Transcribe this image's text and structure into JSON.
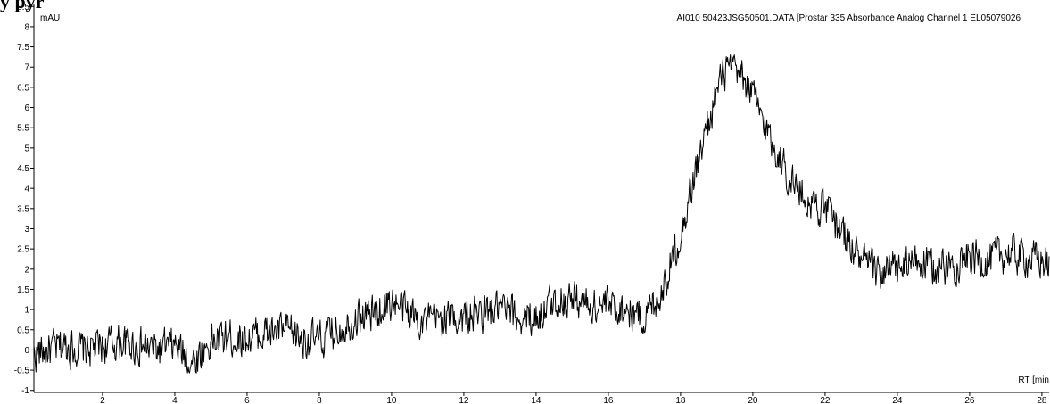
{
  "heading_fragment": "y                  pyr",
  "chart_data": {
    "type": "line",
    "title": "AI010 50423JSG50501.DATA [Prostar 335 Absorbance Analog Channel 1 EL05079026",
    "xlabel": "RT [min",
    "ylabel": "mAU",
    "xlim": [
      0.1,
      28.2
    ],
    "ylim": [
      -1.05,
      8.55
    ],
    "x_ticks": [
      2,
      4,
      6,
      8,
      10,
      12,
      14,
      16,
      18,
      20,
      22,
      24,
      26,
      28
    ],
    "y_ticks": [
      -1,
      -0.5,
      0,
      0.5,
      1,
      1.5,
      2,
      2.5,
      3,
      3.5,
      4,
      4.5,
      5,
      5.5,
      6,
      6.5,
      7,
      7.5,
      8,
      8.5
    ],
    "grid": false,
    "series": [
      {
        "x": [
          0.1,
          0.5,
          1,
          1.5,
          2,
          2.5,
          3,
          3.5,
          4,
          4.5,
          5,
          5.5,
          6,
          6.5,
          7,
          7.5,
          8,
          8.5,
          9,
          9.5,
          10,
          10.5,
          11,
          11.5,
          12,
          12.5,
          13,
          13.5,
          14,
          14.5,
          15,
          15.5,
          16,
          16.5,
          17,
          17.5,
          18,
          18.5,
          19,
          19.25,
          19.5,
          19.75,
          20,
          20.5,
          21,
          21.5,
          22,
          22.5,
          23,
          23.5,
          24,
          24.5,
          25,
          25.5,
          26,
          26.5,
          27,
          27.5,
          28,
          28.2
        ],
        "y": [
          -0.1,
          0.0,
          0.1,
          0.0,
          0.1,
          0.2,
          0.1,
          0.0,
          0.1,
          -0.3,
          0.2,
          0.3,
          0.3,
          0.4,
          0.5,
          0.3,
          0.2,
          0.5,
          0.8,
          0.9,
          1.2,
          0.9,
          0.7,
          0.8,
          0.8,
          0.9,
          1.0,
          0.8,
          0.8,
          1.2,
          1.3,
          1.1,
          1.1,
          1.0,
          0.8,
          1.5,
          2.9,
          4.7,
          6.4,
          6.9,
          6.9,
          6.7,
          6.3,
          5.2,
          4.3,
          3.7,
          3.5,
          2.9,
          2.2,
          1.9,
          2.0,
          2.2,
          2.0,
          2.1,
          2.3,
          2.2,
          2.4,
          2.3,
          2.2,
          2.1
        ]
      }
    ]
  }
}
